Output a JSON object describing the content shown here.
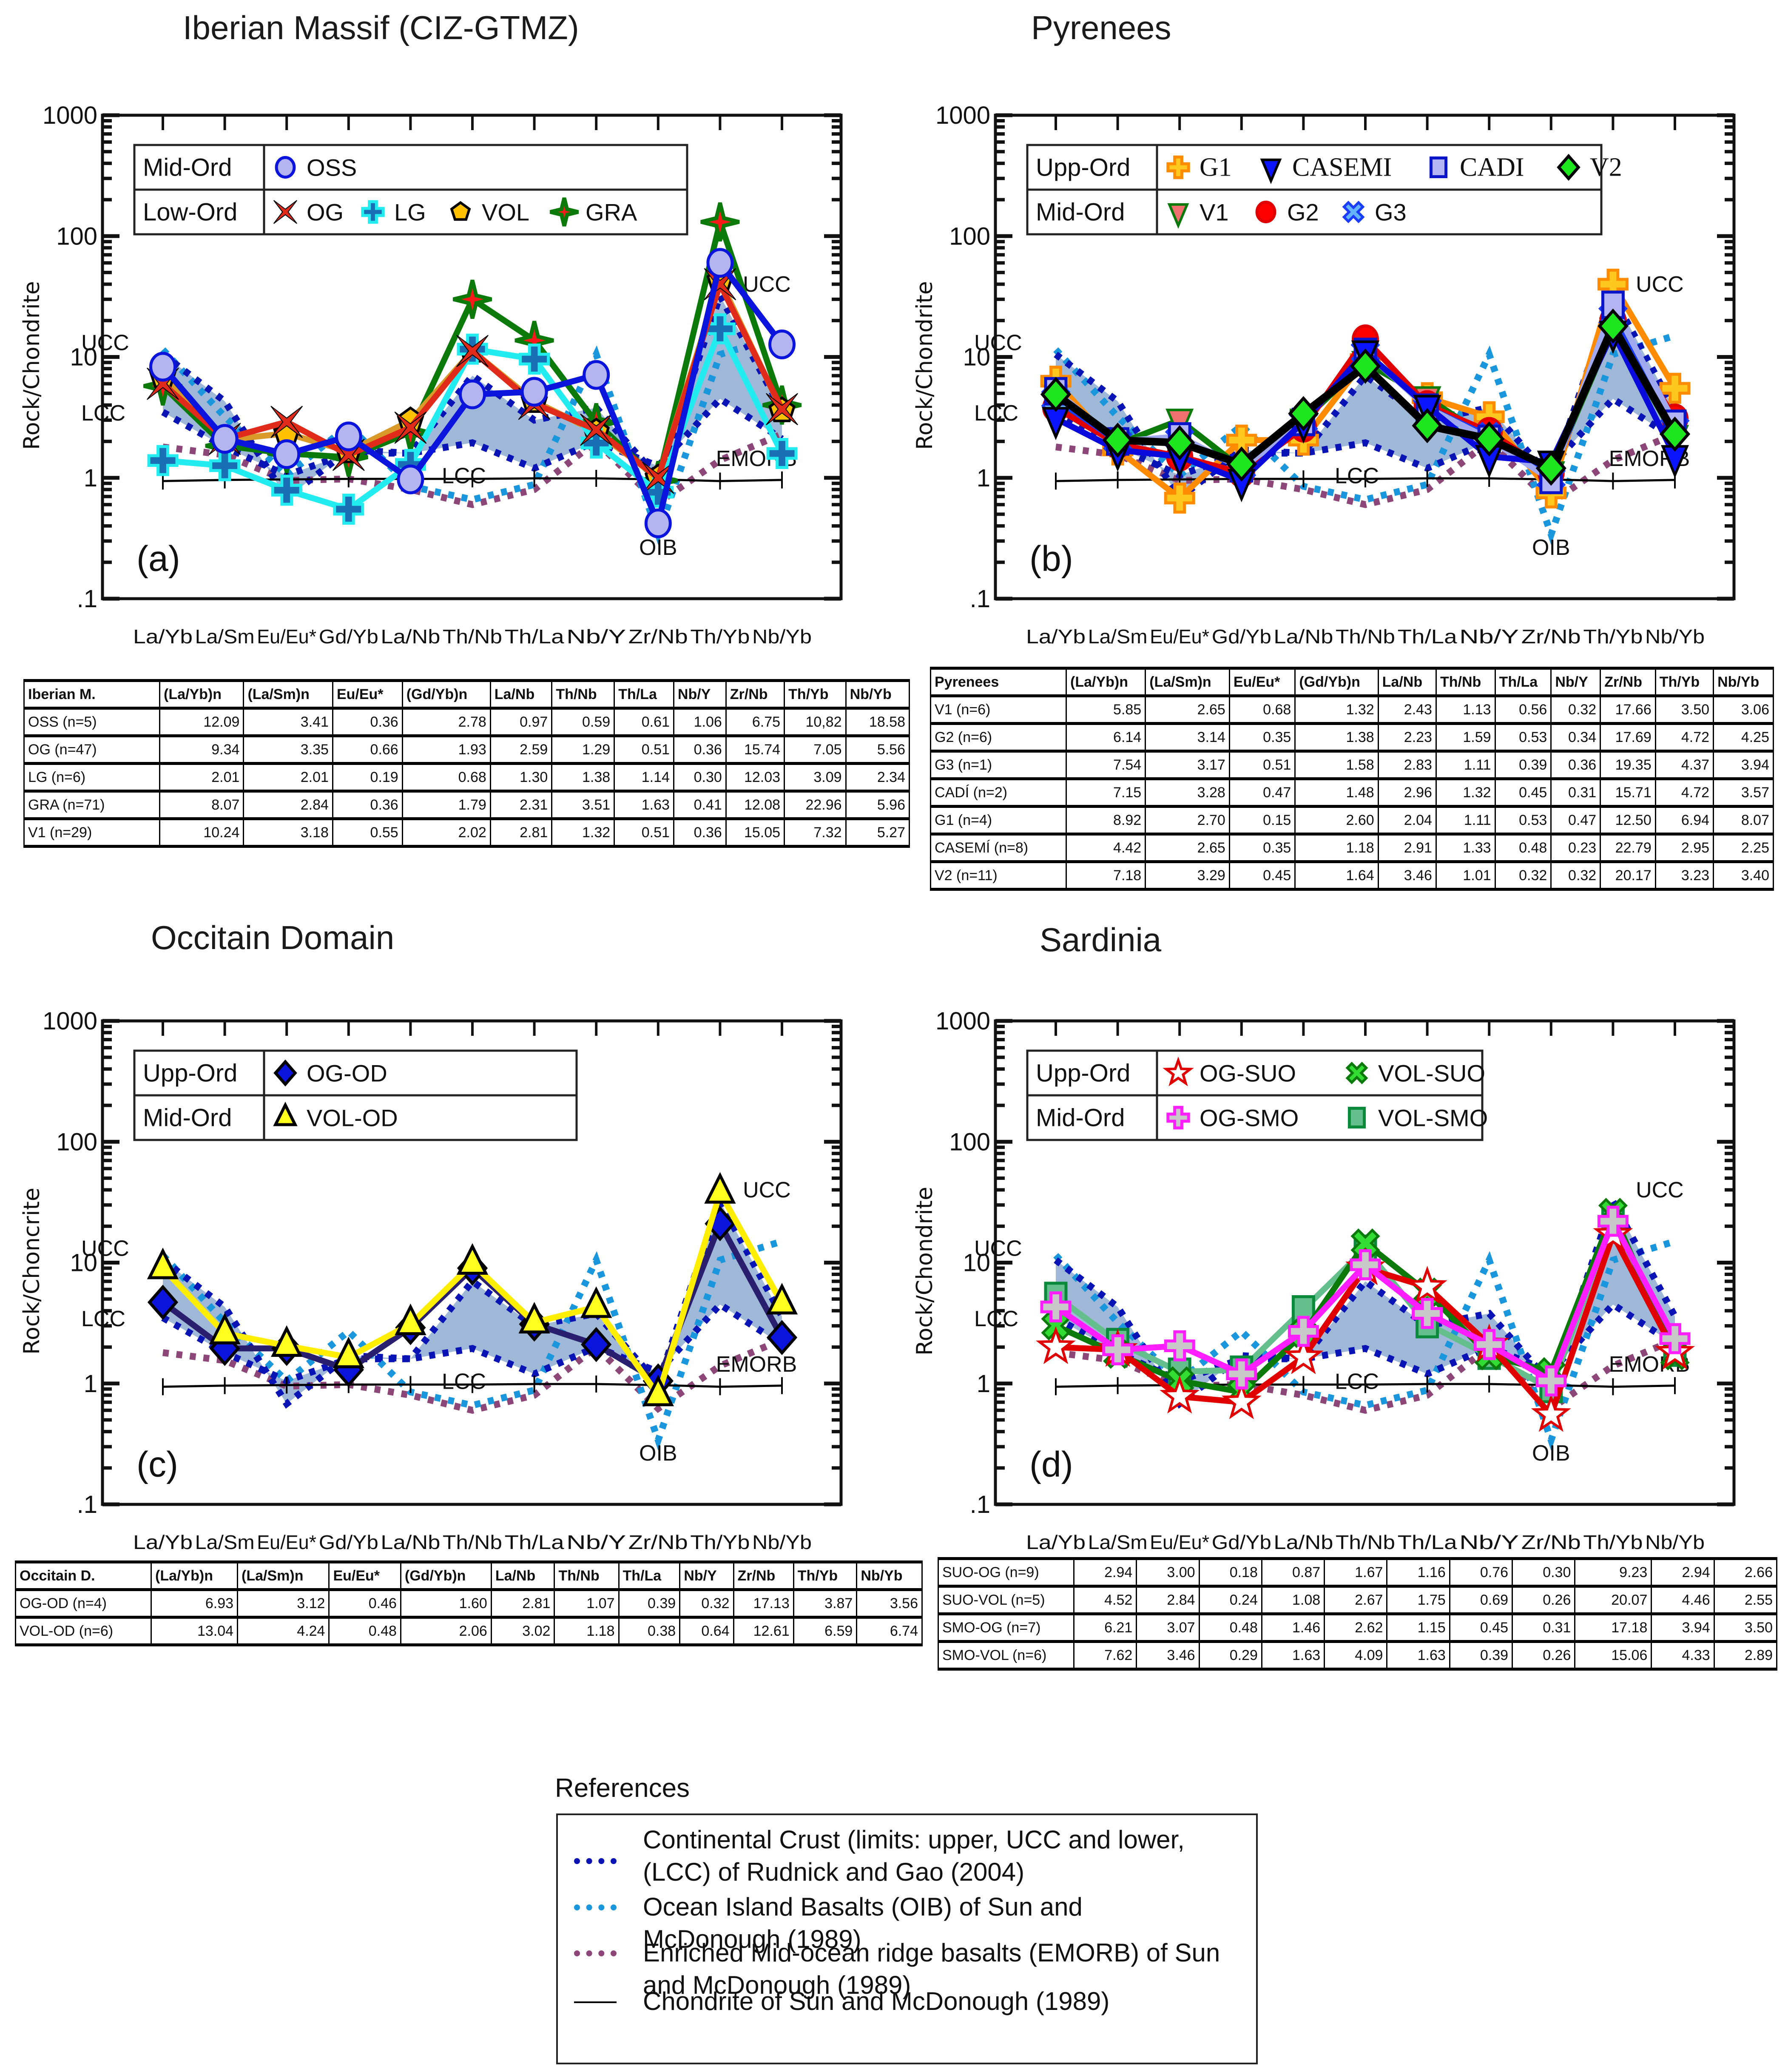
{
  "figure": {
    "categories": [
      "La/Yb",
      "La/Sm",
      "Eu/Eu*",
      "Gd/Yb",
      "La/Nb",
      "Th/Nb",
      "Th/La",
      "Nb/Y",
      "Zr/Nb",
      "Th/Yb",
      "Nb/Yb"
    ],
    "ylabel_default": "Rock/Chondrite",
    "y_ticks": [
      "1000",
      "100",
      "10",
      "1",
      ".1"
    ]
  },
  "references": {
    "title": "References",
    "items": [
      {
        "label": "Continental Crust (limits: upper, UCC and lower, (LCC) of Rudnick and Gao (2004)",
        "color": "#0a14b4",
        "style": "dotted"
      },
      {
        "label": "Ocean Island Basalts (OIB) of Sun and McDonough (1989)",
        "color": "#1a96dc",
        "style": "dotted"
      },
      {
        "label": "Enriched Mid-ocean ridge basalts (EMORB) of Sun and McDonough (1989)",
        "color": "#8c4678",
        "style": "dotted"
      },
      {
        "label": "Chondrite of Sun and McDonough (1989)",
        "color": "#000000",
        "style": "solid"
      }
    ]
  },
  "chart_data": [
    {
      "type": "line",
      "id": "a",
      "title": "Iberian Massif (CIZ-GTMZ)",
      "panel_label": "(a)",
      "ylabel": "Rock/Chondrite",
      "yscale": "log",
      "ylim": [
        0.1,
        1000
      ],
      "xlabel": "",
      "categories": [
        "La/Yb",
        "La/Sm",
        "Eu/Eu*",
        "Gd/Yb",
        "La/Nb",
        "Th/Nb",
        "Th/La",
        "Nb/Y",
        "Zr/Nb",
        "Th/Yb",
        "Nb/Yb"
      ],
      "legend": {
        "position": "top-left",
        "groups": [
          {
            "label": "Mid-Ord",
            "series": [
              "OSS"
            ]
          },
          {
            "label": "Low-Ord",
            "series": [
              "OG",
              "LG",
              "VOL",
              "GRA"
            ]
          }
        ]
      },
      "annotations": [
        "UCC",
        "LCC",
        "LCC",
        "UCC",
        "OIB",
        "EMORB"
      ],
      "series": [
        {
          "name": "GRA",
          "color": "#0b7a0b",
          "marker": "star4",
          "marker_fill": "#ff1a1a",
          "marker_stroke": "#0b7a0b",
          "values": [
            5.75,
            1.84,
            1.59,
            1.48,
            2.38,
            30,
            13.7,
            2.86,
            0.95,
            131,
            4.0
          ]
        },
        {
          "name": "VOL",
          "color": "#d99a2a",
          "marker": "pentagon",
          "marker_fill": "#ffc000",
          "marker_stroke": "#000000",
          "values": [
            6.9,
            2.06,
            2.33,
            1.65,
            2.97,
            11.2,
            4.3,
            2.4,
            1.0,
            43,
            3.6
          ]
        },
        {
          "name": "LG",
          "color": "#22ecf0",
          "marker": "plus",
          "marker_fill": "#1a6fb4",
          "marker_stroke": "#22ecf0",
          "values": [
            1.39,
            1.26,
            0.79,
            0.55,
            1.29,
            11.6,
            9.6,
            1.94,
            0.76,
            17.1,
            1.59
          ]
        },
        {
          "name": "OG",
          "color": "#e02a1a",
          "marker": "xstar",
          "marker_fill": "#e02a1a",
          "marker_stroke": "#000000",
          "values": [
            6.0,
            2.1,
            2.9,
            1.55,
            2.6,
            11.2,
            4.1,
            2.5,
            1.0,
            40,
            3.7
          ]
        },
        {
          "name": "OSS",
          "color": "#0a14dc",
          "marker": "circle",
          "marker_fill": "#b4b4f0",
          "marker_stroke": "#0a14dc",
          "values": [
            8.3,
            2.1,
            1.57,
            2.2,
            0.97,
            4.9,
            5.15,
            7.1,
            0.42,
            60,
            12.7
          ]
        }
      ]
    },
    {
      "type": "line",
      "id": "b",
      "title": "Pyrenees",
      "panel_label": "(b)",
      "ylabel": "Rock/Chondrite",
      "yscale": "log",
      "ylim": [
        0.1,
        1000
      ],
      "xlabel": "",
      "categories": [
        "La/Yb",
        "La/Sm",
        "Eu/Eu*",
        "Gd/Yb",
        "La/Nb",
        "Th/Nb",
        "Th/La",
        "Nb/Y",
        "Zr/Nb",
        "Th/Yb",
        "Nb/Yb"
      ],
      "legend": {
        "position": "top-left",
        "groups": [
          {
            "label": "Upp-Ord",
            "series": [
              "G1",
              "CASEMI",
              "CADI",
              "V2"
            ]
          },
          {
            "label": "Mid-Ord",
            "series": [
              "V1",
              "G2",
              "G3"
            ]
          }
        ]
      },
      "annotations": [
        "UCC",
        "LCC",
        "LCC",
        "UCC",
        "OIB",
        "EMORB"
      ],
      "series": [
        {
          "name": "G1",
          "color": "#ff8c00",
          "marker": "plus",
          "marker_fill": "#ffc81e",
          "marker_stroke": "#ff8c00",
          "values": [
            6.3,
            1.7,
            0.68,
            2.05,
            2.05,
            9.5,
            4.6,
            3.2,
            0.75,
            40,
            5.5
          ]
        },
        {
          "name": "V1",
          "color": "#0b7a0b",
          "marker": "tri-down",
          "marker_fill": "#f07070",
          "marker_stroke": "#0b7a0b",
          "values": [
            4.2,
            1.9,
            3.0,
            1.2,
            3.0,
            9.0,
            4.6,
            2.1,
            1.1,
            17,
            2.2
          ]
        },
        {
          "name": "G2",
          "color": "#e00000",
          "marker": "circle",
          "marker_fill": "#ff0000",
          "marker_stroke": "#e00000",
          "values": [
            3.8,
            1.9,
            1.5,
            1.1,
            2.6,
            14,
            4.0,
            2.4,
            1.1,
            20,
            3.1
          ]
        },
        {
          "name": "G3",
          "color": "#1a3cff",
          "marker": "x",
          "marker_fill": "#64b4ff",
          "marker_stroke": "#1a3cff",
          "values": [
            4.5,
            2.0,
            2.1,
            1.2,
            2.9,
            11,
            3.8,
            2.2,
            1.0,
            22,
            2.6
          ]
        },
        {
          "name": "CADI",
          "color": "#a0a8f0",
          "marker": "square",
          "marker_fill": "#b4b4f5",
          "marker_stroke": "#0a14c8",
          "values": [
            5.2,
            2.0,
            2.2,
            1.2,
            2.9,
            11,
            3.8,
            2.1,
            0.96,
            27,
            2.8
          ]
        },
        {
          "name": "CASEMI",
          "color": "#0a0adc",
          "marker": "tri-down",
          "marker_fill": "#0a14ff",
          "marker_stroke": "#000000",
          "values": [
            3.1,
            1.7,
            1.5,
            0.95,
            2.9,
            11,
            3.9,
            1.5,
            1.35,
            16,
            1.5
          ]
        },
        {
          "name": "V2",
          "color": "#000000",
          "marker": "diamond",
          "marker_fill": "#1ee61e",
          "marker_stroke": "#000000",
          "values": [
            4.9,
            2.05,
            1.95,
            1.3,
            3.4,
            8.4,
            2.7,
            2.1,
            1.2,
            18,
            2.3
          ]
        }
      ]
    },
    {
      "type": "line",
      "id": "c",
      "title": "Occitain Domain",
      "panel_label": "(c)",
      "ylabel": "Rock/Choncrite",
      "yscale": "log",
      "ylim": [
        0.1,
        1000
      ],
      "xlabel": "",
      "categories": [
        "La/Yb",
        "La/Sm",
        "Eu/Eu*",
        "Gd/Yb",
        "La/Nb",
        "Th/Nb",
        "Th/La",
        "Nb/Y",
        "Zr/Nb",
        "Th/Yb",
        "Nb/Yb"
      ],
      "legend": {
        "position": "top-left",
        "groups": [
          {
            "label": "Upp-Ord",
            "series": [
              "OG-OD"
            ]
          },
          {
            "label": "Mid-Ord",
            "series": [
              "VOL-OD"
            ]
          }
        ]
      },
      "annotations": [
        "UCC",
        "LCC",
        "LCC",
        "UCC",
        "OIB",
        "EMORB"
      ],
      "series": [
        {
          "name": "OG-OD",
          "color": "#2a1e6e",
          "marker": "diamond",
          "marker_fill": "#0a14dc",
          "marker_stroke": "#000000",
          "values": [
            4.7,
            1.95,
            1.95,
            1.3,
            2.9,
            9.0,
            3.1,
            2.1,
            1.05,
            21,
            2.4
          ]
        },
        {
          "name": "VOL-OD",
          "color": "#ffee00",
          "marker": "triangle",
          "marker_fill": "#ffff1e",
          "marker_stroke": "#000000",
          "values": [
            9.0,
            2.6,
            2.05,
            1.65,
            3.1,
            9.8,
            3.2,
            4.3,
            0.8,
            38,
            4.6
          ]
        }
      ]
    },
    {
      "type": "line",
      "id": "d",
      "title": "Sardinia",
      "panel_label": "(d)",
      "ylabel": "Rock/Chondrite",
      "yscale": "log",
      "ylim": [
        0.1,
        1000
      ],
      "xlabel": "",
      "categories": [
        "La/Yb",
        "La/Sm",
        "Eu/Eu*",
        "Gd/Yb",
        "La/Nb",
        "Th/Nb",
        "Th/La",
        "Nb/Y",
        "Zr/Nb",
        "Th/Yb",
        "Nb/Yb"
      ],
      "legend": {
        "position": "top-left",
        "groups": [
          {
            "label": "Upp-Ord",
            "series": [
              "OG-SUO",
              "VOL-SUO"
            ]
          },
          {
            "label": "Mid-Ord",
            "series": [
              "OG-SMO",
              "VOL-SMO"
            ]
          }
        ]
      },
      "annotations": [
        "UCC",
        "LCC",
        "LCC",
        "UCC",
        "OIB",
        "EMORB"
      ],
      "series": [
        {
          "name": "VOL-SMO",
          "color": "#64bf8c",
          "marker": "square",
          "marker_fill": "#64bf8c",
          "marker_stroke": "#0b8a3c",
          "values": [
            5.3,
            2.2,
            1.25,
            1.3,
            4.1,
            13,
            3.1,
            1.7,
            0.9,
            22,
            1.8
          ]
        },
        {
          "name": "VOL-SUO",
          "color": "#0b7a0b",
          "marker": "x",
          "marker_fill": "#32dc32",
          "marker_stroke": "#0b7a0b",
          "values": [
            3.0,
            1.75,
            1.05,
            0.85,
            2.6,
            14.5,
            5.7,
            1.7,
            1.25,
            26,
            1.7
          ]
        },
        {
          "name": "OG-SUO",
          "color": "#e00000",
          "marker": "star5",
          "marker_fill": "#ffffff",
          "marker_stroke": "#e00000",
          "values": [
            2.0,
            1.9,
            0.78,
            0.7,
            1.65,
            9.0,
            6.3,
            2.1,
            0.55,
            17,
            1.8
          ]
        },
        {
          "name": "OG-SMO",
          "color": "#ff1eff",
          "marker": "plus",
          "marker_fill": "#c8c8c8",
          "marker_stroke": "#ff1eff",
          "values": [
            4.3,
            1.9,
            2.05,
            1.2,
            2.7,
            9.6,
            3.8,
            2.1,
            1.05,
            22,
            2.35
          ]
        }
      ]
    }
  ],
  "reference_curves": {
    "UCC": {
      "color": "#0a14b4",
      "values": [
        10.5,
        4.3,
        0.68,
        1.7,
        1.6,
        7.0,
        3.0,
        3.8,
        1.0,
        32,
        3.6
      ]
    },
    "LCC": {
      "color": "#0a14b4",
      "values": [
        3.5,
        1.8,
        1.05,
        1.6,
        1.6,
        1.95,
        1.2,
        2.0,
        1.25,
        4.5,
        2.1
      ]
    },
    "OIB": {
      "color": "#1a96dc",
      "values": [
        11.5,
        3.2,
        1.05,
        2.7,
        0.85,
        0.66,
        0.88,
        10.5,
        0.34,
        10.5,
        15
      ]
    },
    "EMORB": {
      "color": "#8c4678",
      "values": [
        1.8,
        1.55,
        0.95,
        0.98,
        0.8,
        0.6,
        0.8,
        2.0,
        0.62,
        1.4,
        2.3
      ]
    },
    "Chondrite": {
      "color": "#000000",
      "values": [
        0.94,
        0.96,
        0.97,
        0.98,
        0.98,
        0.98,
        0.99,
        0.99,
        0.97,
        0.94,
        0.96
      ]
    },
    "band_fill": "#9ab4d6"
  },
  "tables": [
    {
      "id": "iberian",
      "headers": [
        "Iberian M.",
        "(La/Yb)n",
        "(La/Sm)n",
        "Eu/Eu*",
        "(Gd/Yb)n",
        "La/Nb",
        "Th/Nb",
        "Th/La",
        "Nb/Y",
        "Zr/Nb",
        "Th/Yb",
        "Nb/Yb"
      ],
      "rows": [
        [
          "OSS (n=5)",
          "12.09",
          "3.41",
          "0.36",
          "2.78",
          "0.97",
          "0.59",
          "0.61",
          "1.06",
          "6.75",
          "10,82",
          "18.58"
        ],
        [
          "OG (n=47)",
          "9.34",
          "3.35",
          "0.66",
          "1.93",
          "2.59",
          "1.29",
          "0.51",
          "0.36",
          "15.74",
          "7.05",
          "5.56"
        ],
        [
          "LG (n=6)",
          "2.01",
          "2.01",
          "0.19",
          "0.68",
          "1.30",
          "1.38",
          "1.14",
          "0.30",
          "12.03",
          "3.09",
          "2.34"
        ],
        [
          "GRA (n=71)",
          "8.07",
          "2.84",
          "0.36",
          "1.79",
          "2.31",
          "3.51",
          "1.63",
          "0.41",
          "12.08",
          "22.96",
          "5.96"
        ],
        [
          "V1 (n=29)",
          "10.24",
          "3.18",
          "0.55",
          "2.02",
          "2.81",
          "1.32",
          "0.51",
          "0.36",
          "15.05",
          "7.32",
          "5.27"
        ]
      ]
    },
    {
      "id": "pyrenees",
      "headers": [
        "Pyrenees",
        "(La/Yb)n",
        "(La/Sm)n",
        "Eu/Eu*",
        "(Gd/Yb)n",
        "La/Nb",
        "Th/Nb",
        "Th/La",
        "Nb/Y",
        "Zr/Nb",
        "Th/Yb",
        "Nb/Yb"
      ],
      "rows": [
        [
          "V1 (n=6)",
          "5.85",
          "2.65",
          "0.68",
          "1.32",
          "2.43",
          "1.13",
          "0.56",
          "0.32",
          "17.66",
          "3.50",
          "3.06"
        ],
        [
          "G2 (n=6)",
          "6.14",
          "3.14",
          "0.35",
          "1.38",
          "2.23",
          "1.59",
          "0.53",
          "0.34",
          "17.69",
          "4.72",
          "4.25"
        ],
        [
          "G3 (n=1)",
          "7.54",
          "3.17",
          "0.51",
          "1.58",
          "2.83",
          "1.11",
          "0.39",
          "0.36",
          "19.35",
          "4.37",
          "3.94"
        ],
        [
          "CADÍ (n=2)",
          "7.15",
          "3.28",
          "0.47",
          "1.48",
          "2.96",
          "1.32",
          "0.45",
          "0.31",
          "15.71",
          "4.72",
          "3.57"
        ],
        [
          "G1 (n=4)",
          "8.92",
          "2.70",
          "0.15",
          "2.60",
          "2.04",
          "1.11",
          "0.53",
          "0.47",
          "12.50",
          "6.94",
          "8.07"
        ],
        [
          "CASEMÍ (n=8)",
          "4.42",
          "2.65",
          "0.35",
          "1.18",
          "2.91",
          "1.33",
          "0.48",
          "0.23",
          "22.79",
          "2.95",
          "2.25"
        ],
        [
          "V2 (n=11)",
          "7.18",
          "3.29",
          "0.45",
          "1.64",
          "3.46",
          "1.01",
          "0.32",
          "0.32",
          "20.17",
          "3.23",
          "3.40"
        ]
      ]
    },
    {
      "id": "occitain",
      "headers": [
        "Occitain D.",
        "(La/Yb)n",
        "(La/Sm)n",
        "Eu/Eu*",
        "(Gd/Yb)n",
        "La/Nb",
        "Th/Nb",
        "Th/La",
        "Nb/Y",
        "Zr/Nb",
        "Th/Yb",
        "Nb/Yb"
      ],
      "rows": [
        [
          "OG-OD (n=4)",
          "6.93",
          "3.12",
          "0.46",
          "1.60",
          "2.81",
          "1.07",
          "0.39",
          "0.32",
          "17.13",
          "3.87",
          "3.56"
        ],
        [
          "VOL-OD  (n=6)",
          "13.04",
          "4.24",
          "0.48",
          "2.06",
          "3.02",
          "1.18",
          "0.38",
          "0.64",
          "12.61",
          "6.59",
          "6.74"
        ]
      ]
    },
    {
      "id": "sardinia",
      "headers": [],
      "rows": [
        [
          "SUO-OG  (n=9)",
          "2.94",
          "3.00",
          "0.18",
          "0.87",
          "1.67",
          "1.16",
          "0.76",
          "0.30",
          "9.23",
          "2.94",
          "2.66"
        ],
        [
          "SUO-VOL  (n=5)",
          "4.52",
          "2.84",
          "0.24",
          "1.08",
          "2.67",
          "1.75",
          "0.69",
          "0.26",
          "20.07",
          "4.46",
          "2.55"
        ],
        [
          "SMO-OG (n=7)",
          "6.21",
          "3.07",
          "0.48",
          "1.46",
          "2.62",
          "1.15",
          "0.45",
          "0.31",
          "17.18",
          "3.94",
          "3.50"
        ],
        [
          "SMO-VOL  (n=6)",
          "7.62",
          "3.46",
          "0.29",
          "1.63",
          "4.09",
          "1.63",
          "0.39",
          "0.26",
          "15.06",
          "4.33",
          "2.89"
        ]
      ]
    }
  ]
}
